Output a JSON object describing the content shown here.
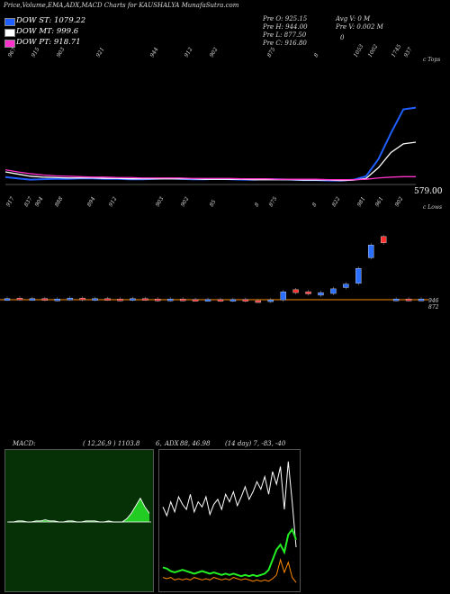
{
  "header": {
    "title": "Price,Volume,EMA,ADX,MACD Charts for KAUSHALYA MunafaSutra.com"
  },
  "legend": [
    {
      "label": "DOW ST: 1079.22",
      "color": "#1f5fff"
    },
    {
      "label": "DOW MT: 999.6",
      "color": "#ffffff"
    },
    {
      "label": "DOW PT: 918.71",
      "color": "#ff33cc"
    }
  ],
  "stats": {
    "col1": [
      "Pre O: 925.15",
      "Pre H: 944.00",
      "Pre L: 877.50",
      "Pre C: 916.80"
    ],
    "col2": [
      "Avg V: 0 M",
      "Pre V: 0.002 M",
      "0"
    ]
  },
  "upper_chart": {
    "top_label": "c Tops",
    "bottom_label": "c Lows",
    "price_marker": "579.00",
    "tops": [
      "967",
      "915",
      "903",
      "921",
      "944",
      "912",
      "902",
      "875",
      "8",
      "1053",
      "1002",
      "1745",
      "937"
    ],
    "lows": [
      "917",
      "837",
      "904",
      "888",
      "894",
      "912",
      "903",
      "902",
      "85",
      "8",
      "875",
      "8",
      "822",
      "981",
      "961",
      "902"
    ]
  },
  "lower_chart": {
    "right_labels": [
      "946",
      "872"
    ]
  },
  "indicators": {
    "macd_label": "MACD:",
    "macd_values": "( 12,26,9 ) 1103.8",
    "adx_prefix": "6,",
    "adx_label": "ADX",
    "adx_values": "88, 46.98",
    "adx_params": "(14 day) 7, -83, -40"
  },
  "chart_data": [
    {
      "type": "line",
      "title": "Price EMA",
      "series": [
        {
          "name": "DOW ST",
          "color": "#1f5fff",
          "values": [
            918,
            915,
            912,
            913,
            914,
            914,
            915,
            915,
            914,
            914,
            913,
            913,
            914,
            915,
            914,
            913,
            913,
            914,
            913,
            912,
            912,
            913,
            913,
            912,
            911,
            911,
            910,
            910,
            912,
            920,
            960,
            1020,
            1075,
            1079
          ]
        },
        {
          "name": "DOW MT",
          "color": "#ffffff",
          "values": [
            930,
            925,
            920,
            918,
            917,
            916,
            916,
            916,
            915,
            915,
            914,
            914,
            914,
            914,
            914,
            914,
            913,
            913,
            913,
            913,
            912,
            912,
            912,
            912,
            911,
            911,
            911,
            910,
            911,
            915,
            940,
            975,
            995,
            999
          ]
        },
        {
          "name": "DOW PT",
          "color": "#ff33cc",
          "values": [
            935,
            930,
            926,
            923,
            921,
            920,
            919,
            918,
            918,
            917,
            917,
            916,
            916,
            916,
            916,
            915,
            915,
            915,
            915,
            914,
            914,
            914,
            913,
            913,
            913,
            913,
            912,
            912,
            912,
            913,
            916,
            918,
            919,
            919
          ]
        }
      ]
    },
    {
      "type": "candlestick",
      "title": "Price",
      "candles": [
        {
          "o": 912,
          "c": 914,
          "up": true
        },
        {
          "o": 915,
          "c": 913,
          "up": false
        },
        {
          "o": 913,
          "c": 914,
          "up": true
        },
        {
          "o": 914,
          "c": 912,
          "up": false
        },
        {
          "o": 912,
          "c": 913,
          "up": true
        },
        {
          "o": 913,
          "c": 915,
          "up": true
        },
        {
          "o": 915,
          "c": 912,
          "up": false
        },
        {
          "o": 912,
          "c": 914,
          "up": true
        },
        {
          "o": 914,
          "c": 913,
          "up": false
        },
        {
          "o": 913,
          "c": 912,
          "up": false
        },
        {
          "o": 912,
          "c": 914,
          "up": true
        },
        {
          "o": 914,
          "c": 913,
          "up": false
        },
        {
          "o": 913,
          "c": 911,
          "up": false
        },
        {
          "o": 911,
          "c": 913,
          "up": true
        },
        {
          "o": 913,
          "c": 912,
          "up": false
        },
        {
          "o": 912,
          "c": 911,
          "up": false
        },
        {
          "o": 911,
          "c": 912,
          "up": true
        },
        {
          "o": 912,
          "c": 910,
          "up": false
        },
        {
          "o": 910,
          "c": 912,
          "up": true
        },
        {
          "o": 912,
          "c": 909,
          "up": false
        },
        {
          "o": 909,
          "c": 908,
          "up": false
        },
        {
          "o": 908,
          "c": 911,
          "up": true
        },
        {
          "o": 911,
          "c": 930,
          "up": true
        },
        {
          "o": 935,
          "c": 928,
          "up": false
        },
        {
          "o": 930,
          "c": 925,
          "up": false
        },
        {
          "o": 922,
          "c": 928,
          "up": true
        },
        {
          "o": 926,
          "c": 937,
          "up": true
        },
        {
          "o": 940,
          "c": 948,
          "up": true
        },
        {
          "o": 950,
          "c": 985,
          "up": true
        },
        {
          "o": 1010,
          "c": 1040,
          "up": true
        },
        {
          "o": 1060,
          "c": 1045,
          "up": false
        },
        {
          "o": 912,
          "c": 913,
          "up": true
        },
        {
          "o": 913,
          "c": 912,
          "up": false
        },
        {
          "o": 912,
          "c": 913,
          "up": true
        }
      ]
    },
    {
      "type": "area",
      "title": "MACD",
      "series": [
        {
          "name": "MACD",
          "values": [
            0,
            0,
            1,
            1,
            0,
            0,
            1,
            1,
            2,
            1,
            1,
            0,
            0,
            1,
            1,
            0,
            0,
            1,
            1,
            1,
            0,
            0,
            1,
            0,
            0,
            0,
            3,
            8,
            15,
            22,
            14,
            8
          ]
        }
      ]
    },
    {
      "type": "line",
      "title": "ADX",
      "series": [
        {
          "name": "DI+",
          "color": "#ffffff",
          "values": [
            62,
            55,
            66,
            58,
            70,
            64,
            60,
            72,
            58,
            66,
            62,
            70,
            56,
            64,
            68,
            60,
            72,
            66,
            74,
            63,
            70,
            78,
            68,
            74,
            82,
            76,
            86,
            72,
            90,
            80,
            94,
            60,
            98,
            66,
            30
          ]
        },
        {
          "name": "ADX",
          "color": "#22ee22",
          "values": [
            14,
            13,
            11,
            10,
            11,
            12,
            11,
            10,
            9,
            10,
            11,
            10,
            9,
            10,
            9,
            8,
            9,
            8,
            9,
            8,
            7,
            8,
            7,
            8,
            7,
            8,
            9,
            12,
            20,
            28,
            32,
            26,
            40,
            44,
            36
          ]
        },
        {
          "name": "DI-",
          "color": "#ff8800",
          "values": [
            6,
            5,
            6,
            4,
            5,
            4,
            5,
            4,
            6,
            5,
            4,
            5,
            4,
            6,
            5,
            4,
            5,
            4,
            6,
            5,
            4,
            5,
            4,
            3,
            4,
            3,
            4,
            3,
            5,
            8,
            20,
            10,
            18,
            6,
            2
          ]
        }
      ]
    }
  ]
}
